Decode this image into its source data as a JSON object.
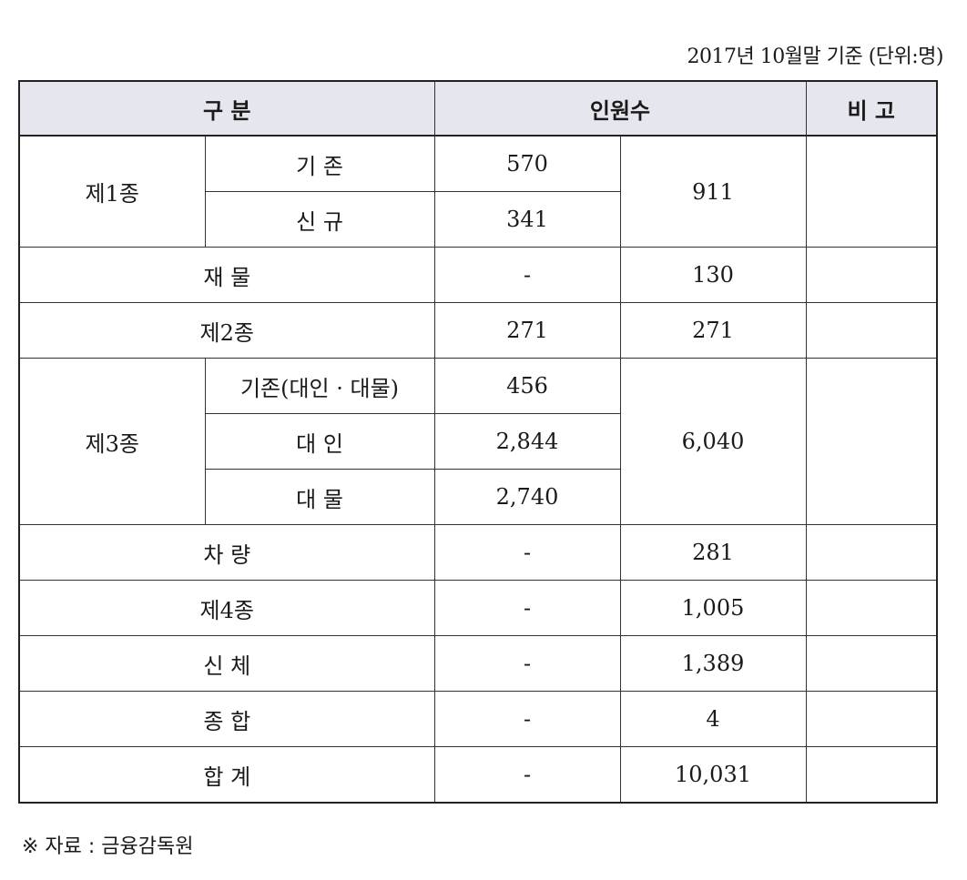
{
  "caption": "2017년 10월말 기준 (단위:명)",
  "header": {
    "category": "구 분",
    "count": "인원수",
    "remarks": "비 고"
  },
  "rows": {
    "type1": {
      "label": "제1종",
      "existing_label": "기 존",
      "existing_value": "570",
      "new_label": "신 규",
      "new_value": "341",
      "total": "911"
    },
    "property": {
      "label": "재 물",
      "sub": "-",
      "total": "130"
    },
    "type2": {
      "label": "제2종",
      "sub": "271",
      "total": "271"
    },
    "type3": {
      "label": "제3종",
      "existing_label": "기존(대인 · 대물)",
      "existing_value": "456",
      "bodily_label": "대 인",
      "bodily_value": "2,844",
      "property_label": "대 물",
      "property_value": "2,740",
      "total": "6,040"
    },
    "vehicle": {
      "label": "차 량",
      "sub": "-",
      "total": "281"
    },
    "type4": {
      "label": "제4종",
      "sub": "-",
      "total": "1,005"
    },
    "body": {
      "label": "신 체",
      "sub": "-",
      "total": "1,389"
    },
    "comprehensive": {
      "label": "종 합",
      "sub": "-",
      "total": "4"
    },
    "sum": {
      "label": "합 계",
      "sub": "-",
      "total": "10,031"
    }
  },
  "footnote": "※ 자료 : 금융감독원"
}
